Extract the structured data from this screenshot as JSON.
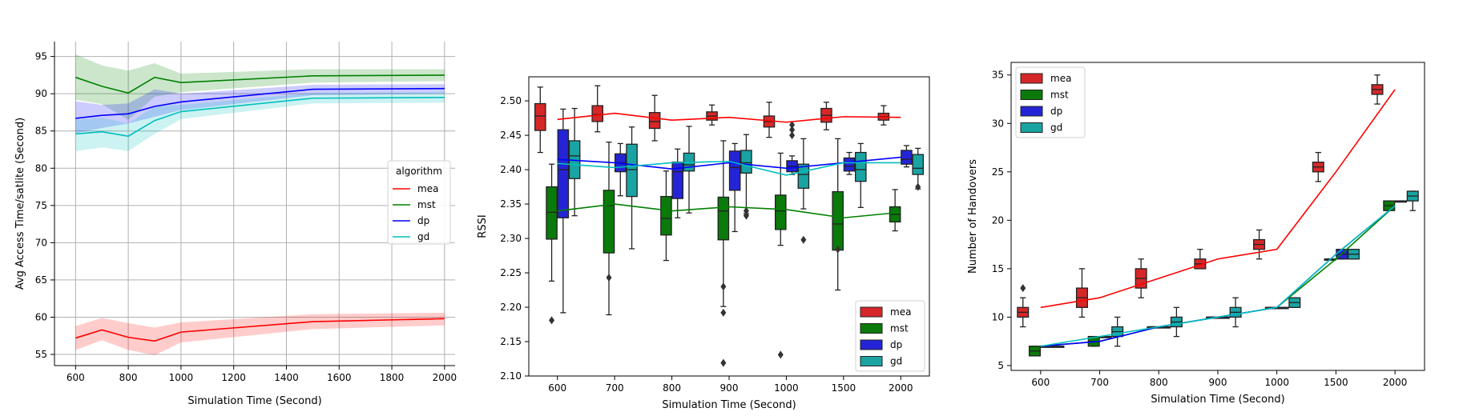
{
  "colors": {
    "mea": "#ff0000",
    "mst": "#008000",
    "dp": "#0000ff",
    "gd": "#00bfbf",
    "box_mea": "#d62728",
    "box_mst": "#0a7a0a",
    "box_dp": "#2424d6",
    "box_gd": "#1aa3a3"
  },
  "chart_data": [
    {
      "type": "line",
      "title": "",
      "xlabel": "Simulation Time (Second)",
      "ylabel": "Avg Access Time/satlite (Second)",
      "xlim": [
        520,
        2040
      ],
      "ylim": [
        53.5,
        97
      ],
      "xticks": [
        600,
        800,
        1000,
        1200,
        1400,
        1600,
        1800,
        2000
      ],
      "yticks": [
        55,
        60,
        65,
        70,
        75,
        80,
        85,
        90,
        95
      ],
      "grid": true,
      "legend": {
        "title": "algorithm",
        "placement": "center-right"
      },
      "x": [
        600,
        700,
        800,
        900,
        1000,
        1500,
        2000
      ],
      "series": [
        {
          "name": "mea",
          "color": "#ff0000",
          "values": [
            57.2,
            58.3,
            57.3,
            56.8,
            58.0,
            59.4,
            59.8
          ],
          "lower": [
            55.6,
            56.9,
            55.6,
            54.9,
            56.6,
            58.4,
            58.9
          ],
          "upper": [
            58.8,
            59.9,
            59.2,
            58.6,
            59.3,
            60.4,
            60.6
          ]
        },
        {
          "name": "mst",
          "color": "#008000",
          "values": [
            92.2,
            91.0,
            90.1,
            92.2,
            91.5,
            92.4,
            92.5
          ],
          "lower": [
            89.2,
            88.6,
            86.5,
            89.6,
            90.2,
            91.5,
            91.7
          ],
          "upper": [
            95.3,
            93.8,
            93.1,
            94.1,
            92.7,
            93.3,
            93.3
          ]
        },
        {
          "name": "dp",
          "color": "#0000ff",
          "values": [
            86.7,
            87.1,
            87.3,
            88.3,
            88.9,
            90.6,
            90.7
          ],
          "lower": [
            84.7,
            85.4,
            86.0,
            86.9,
            87.8,
            89.8,
            90.0
          ],
          "upper": [
            89.0,
            88.5,
            88.7,
            90.6,
            90.0,
            91.2,
            91.3
          ]
        },
        {
          "name": "gd",
          "color": "#00bfbf",
          "values": [
            84.6,
            84.9,
            84.3,
            86.4,
            87.6,
            89.4,
            89.5
          ],
          "lower": [
            82.3,
            82.8,
            82.3,
            84.6,
            86.6,
            88.7,
            88.8
          ],
          "upper": [
            86.5,
            86.8,
            86.0,
            88.3,
            88.5,
            90.1,
            90.2
          ]
        }
      ]
    },
    {
      "type": "box",
      "title": "",
      "xlabel": "Simulation Time (Second)",
      "ylabel": "RSSI",
      "ylim": [
        2.1,
        2.535
      ],
      "yticks": [
        2.1,
        2.15,
        2.2,
        2.25,
        2.3,
        2.35,
        2.4,
        2.45,
        2.5
      ],
      "ytick_labels": [
        "2.10",
        "2.15",
        "2.20",
        "2.25",
        "2.30",
        "2.35",
        "2.40",
        "2.45",
        "2.50"
      ],
      "categories": [
        "600",
        "700",
        "800",
        "900",
        "1000",
        "1500",
        "2000"
      ],
      "legend": {
        "placement": "bottom-right"
      },
      "series": [
        {
          "name": "mea",
          "color": "#d62728",
          "line": "#ff0000",
          "mean": [
            2.473,
            2.482,
            2.472,
            2.476,
            2.469,
            2.477,
            2.476
          ],
          "boxes": [
            [
              2.425,
              2.457,
              2.478,
              2.496,
              2.52
            ],
            [
              2.455,
              2.47,
              2.48,
              2.493,
              2.522
            ],
            [
              2.442,
              2.46,
              2.47,
              2.483,
              2.508
            ],
            [
              2.465,
              2.472,
              2.478,
              2.484,
              2.494
            ],
            [
              2.447,
              2.462,
              2.47,
              2.478,
              2.498
            ],
            [
              2.458,
              2.469,
              2.479,
              2.489,
              2.498
            ],
            [
              2.465,
              2.472,
              2.477,
              2.482,
              2.493
            ]
          ],
          "outliers": [
            [],
            [],
            [],
            [],
            [],
            [],
            []
          ]
        },
        {
          "name": "mst",
          "color": "#0a7a0a",
          "line": "#008000",
          "mean": [
            2.34,
            2.35,
            2.34,
            2.346,
            2.342,
            2.33,
            2.338
          ],
          "boxes": [
            [
              2.238,
              2.299,
              2.338,
              2.375,
              2.408
            ],
            [
              2.189,
              2.279,
              2.348,
              2.37,
              2.44
            ],
            [
              2.268,
              2.305,
              2.329,
              2.361,
              2.398
            ],
            [
              2.201,
              2.298,
              2.34,
              2.36,
              2.442
            ],
            [
              2.29,
              2.313,
              2.34,
              2.363,
              2.424
            ],
            [
              2.225,
              2.283,
              2.321,
              2.368,
              2.445
            ],
            [
              2.311,
              2.324,
              2.335,
              2.346,
              2.371
            ]
          ],
          "outliers": [
            [
              2.181
            ],
            [
              2.243
            ],
            [],
            [
              2.119,
              2.192,
              2.23
            ],
            [
              2.131
            ],
            [
              2.284
            ],
            []
          ]
        },
        {
          "name": "dp",
          "color": "#2424d6",
          "line": "#0000ff",
          "mean": [
            2.415,
            2.41,
            2.401,
            2.41,
            2.402,
            2.41,
            2.418
          ],
          "boxes": [
            [
              2.192,
              2.33,
              2.4,
              2.458,
              2.488
            ],
            [
              2.362,
              2.397,
              2.41,
              2.423,
              2.438
            ],
            [
              2.33,
              2.358,
              2.397,
              2.411,
              2.43
            ],
            [
              2.31,
              2.37,
              2.403,
              2.427,
              2.438
            ],
            [
              2.393,
              2.397,
              2.405,
              2.413,
              2.42
            ],
            [
              2.393,
              2.398,
              2.405,
              2.417,
              2.425
            ],
            [
              2.404,
              2.408,
              2.415,
              2.428,
              2.435
            ]
          ],
          "outliers": [
            [],
            [],
            [],
            [],
            [
              2.465,
              2.458,
              2.45
            ],
            [],
            []
          ]
        },
        {
          "name": "gd",
          "color": "#1aa3a3",
          "line": "#00bfbf",
          "mean": [
            2.409,
            2.403,
            2.41,
            2.412,
            2.392,
            2.41,
            2.41
          ],
          "boxes": [
            [
              2.333,
              2.387,
              2.42,
              2.442,
              2.489
            ],
            [
              2.285,
              2.361,
              2.4,
              2.437,
              2.462
            ],
            [
              2.337,
              2.398,
              2.407,
              2.424,
              2.463
            ],
            [
              2.336,
              2.395,
              2.41,
              2.428,
              2.451
            ],
            [
              2.343,
              2.373,
              2.393,
              2.408,
              2.445
            ],
            [
              2.345,
              2.383,
              2.4,
              2.425,
              2.438
            ],
            [
              2.372,
              2.393,
              2.402,
              2.422,
              2.431
            ]
          ],
          "outliers": [
            [],
            [],
            [],
            [
              2.333,
              2.34
            ],
            [
              2.298
            ],
            [],
            [
              2.375
            ]
          ]
        }
      ]
    },
    {
      "type": "box",
      "title": "",
      "xlabel": "Simulation Time (Second)",
      "ylabel": "Number of Handovers",
      "ylim": [
        4.5,
        36.3
      ],
      "yticks": [
        5,
        10,
        15,
        20,
        25,
        30,
        35
      ],
      "categories": [
        "600",
        "700",
        "800",
        "900",
        "1000",
        "1500",
        "2000"
      ],
      "legend": {
        "placement": "top-left"
      },
      "series": [
        {
          "name": "mea",
          "color": "#d62728",
          "line": "#ff0000",
          "mean": [
            11.0,
            12.0,
            14.0,
            16.0,
            17.0,
            25.0,
            33.5
          ],
          "boxes": [
            [
              9.0,
              10.0,
              10.5,
              11.0,
              12.0
            ],
            [
              10.0,
              11.0,
              12.0,
              13.0,
              15.0
            ],
            [
              12.0,
              13.0,
              14.0,
              15.0,
              16.0
            ],
            [
              15.0,
              15.0,
              15.5,
              16.0,
              17.0
            ],
            [
              16.0,
              17.0,
              17.5,
              18.0,
              19.0
            ],
            [
              24.0,
              25.0,
              25.5,
              26.0,
              27.0
            ],
            [
              32.0,
              33.0,
              33.5,
              34.0,
              35.0
            ]
          ],
          "outliers": [
            [
              13.0
            ],
            [],
            [],
            [],
            [],
            [],
            []
          ]
        },
        {
          "name": "mst",
          "color": "#0a7a0a",
          "line": "#008000",
          "mean": [
            7.0,
            7.5,
            9.0,
            10.0,
            11.0,
            16.0,
            21.5
          ],
          "boxes": [
            [
              6.0,
              6.0,
              6.5,
              7.0,
              7.0
            ],
            [
              7.0,
              7.0,
              7.5,
              8.0,
              8.0
            ],
            [
              9.0,
              9.0,
              9.0,
              9.0,
              9.0
            ],
            [
              10.0,
              10.0,
              10.0,
              10.0,
              10.0
            ],
            [
              11.0,
              11.0,
              11.0,
              11.0,
              11.0
            ],
            [
              16.0,
              16.0,
              16.0,
              16.0,
              16.0
            ],
            [
              21.0,
              21.0,
              21.5,
              22.0,
              22.0
            ]
          ],
          "outliers": [
            [],
            [],
            [],
            [],
            [],
            [],
            []
          ]
        },
        {
          "name": "dp",
          "color": "#2424d6",
          "line": "#0000ff",
          "mean": [
            7.0,
            7.5,
            9.0,
            10.0,
            11.0,
            16.5,
            21.5
          ],
          "boxes": [
            [
              7.0,
              7.0,
              7.0,
              7.0,
              7.0
            ],
            [
              8.0,
              8.0,
              8.0,
              8.0,
              8.0
            ],
            [
              9.0,
              9.0,
              9.0,
              9.0,
              9.0
            ],
            [
              10.0,
              10.0,
              10.0,
              10.0,
              10.0
            ],
            [
              11.0,
              11.0,
              11.0,
              11.0,
              11.0
            ],
            [
              16.0,
              16.0,
              16.5,
              17.0,
              17.0
            ],
            [
              22.0,
              22.0,
              22.0,
              22.0,
              22.0
            ]
          ],
          "outliers": [
            [],
            [],
            [],
            [],
            [],
            [],
            []
          ]
        },
        {
          "name": "gd",
          "color": "#1aa3a3",
          "line": "#00bfbf",
          "mean": [
            7.0,
            8.0,
            9.0,
            10.0,
            11.0,
            16.5,
            21.5
          ],
          "boxes": [
            [
              7.0,
              7.0,
              7.0,
              7.0,
              7.0
            ],
            [
              7.0,
              8.0,
              8.5,
              9.0,
              10.0
            ],
            [
              8.0,
              9.0,
              9.5,
              10.0,
              11.0
            ],
            [
              9.0,
              10.0,
              10.5,
              11.0,
              12.0
            ],
            [
              11.0,
              11.0,
              11.5,
              12.0,
              12.0
            ],
            [
              16.0,
              16.0,
              16.5,
              17.0,
              17.0
            ],
            [
              21.0,
              22.0,
              22.5,
              23.0,
              23.0
            ]
          ],
          "outliers": [
            [],
            [],
            [],
            [],
            [],
            [],
            []
          ]
        }
      ]
    }
  ]
}
